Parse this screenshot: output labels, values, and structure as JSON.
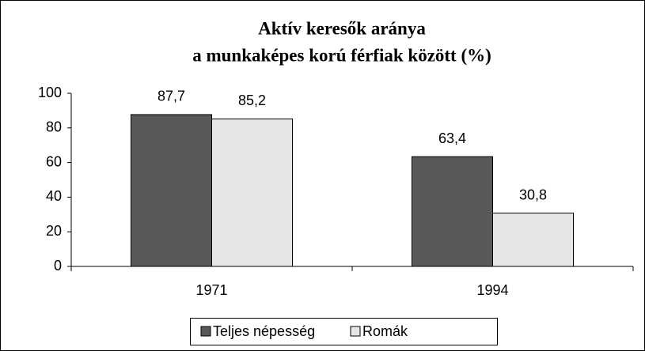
{
  "chart_data": {
    "type": "bar",
    "title": [
      "Aktív keresők aránya",
      "a munkaképes korú férfiak között (%)"
    ],
    "categories": [
      "1971",
      "1994"
    ],
    "series": [
      {
        "name": "Teljes népesség",
        "color": "#595959",
        "values": [
          87.7,
          63.4
        ],
        "value_labels": [
          "87,7",
          "63,4"
        ]
      },
      {
        "name": "Romák",
        "color": "#e6e6e6",
        "values": [
          85.2,
          30.8
        ],
        "value_labels": [
          "85,2",
          "30,8"
        ]
      }
    ],
    "ylim": [
      0,
      100
    ],
    "yticks": [
      0,
      20,
      40,
      60,
      80,
      100
    ],
    "grid": false
  }
}
